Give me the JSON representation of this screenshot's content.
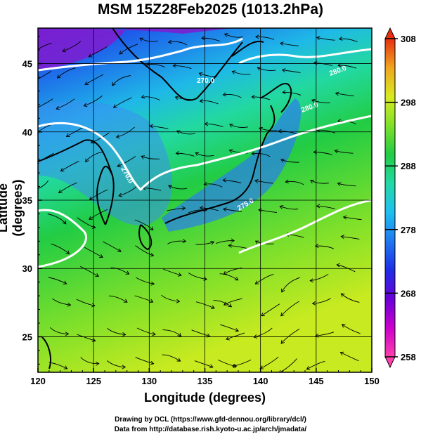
{
  "title": "MSM 15Z28Feb2025 (1013.2hPa)",
  "axes": {
    "xlabel": "Longitude (degrees)",
    "ylabel": "Latitude  (degrees)"
  },
  "credits": {
    "line1": "Drawing by DCL (https://www.gfd-dennou.org/library/dcl/)",
    "line2": "Data from http://database.rish.kyoto-u.ac.jp/arch/jmadata/"
  },
  "contour_labels": [
    "270.0",
    "275.0",
    "280.0"
  ],
  "chart_data": {
    "type": "heatmap",
    "title": "MSM 15Z28Feb2025 (1013.2hPa)",
    "xlabel": "Longitude (degrees)",
    "ylabel": "Latitude  (degrees)",
    "xlim": [
      120,
      150
    ],
    "ylim": [
      22.4,
      47.6
    ],
    "x_ticks": [
      120,
      125,
      130,
      135,
      140,
      145,
      150
    ],
    "y_ticks": [
      25,
      30,
      35,
      40,
      45
    ],
    "grid": true,
    "colorbar": {
      "min": 258,
      "max": 308,
      "ticks": [
        258,
        268,
        278,
        288,
        298,
        308
      ],
      "colors": [
        "#ff3fae",
        "#cc00cc",
        "#6a00d8",
        "#1e2fe6",
        "#1f78f0",
        "#1fc0f0",
        "#22d9a6",
        "#22cc44",
        "#7fe02a",
        "#d8ea1f",
        "#f0a420",
        "#e83010"
      ]
    },
    "contour_interval": 5,
    "contour_color": "#ffffff",
    "overlays": [
      "coastlines",
      "wind streamlines"
    ]
  }
}
